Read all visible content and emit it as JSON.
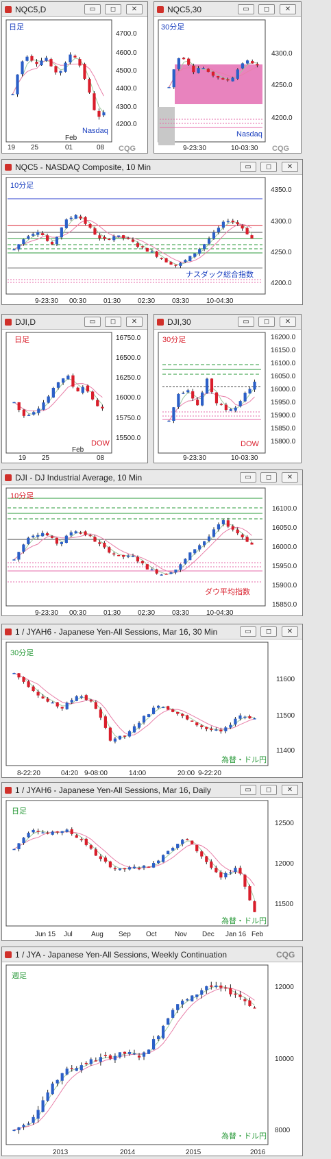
{
  "colors": {
    "up": "#2b5fc7",
    "down": "#d91e2b",
    "bg": "#ffffff",
    "titlebar": "#e9e9e9"
  },
  "window_buttons": {
    "minimize": "▭",
    "restore": "◻",
    "close": "✕"
  },
  "logo": "CQG",
  "windows": [
    {
      "title": "NQC5,D",
      "label": "日足",
      "note": "Nasdaq",
      "yticks": [
        "4700.0",
        "4600.0",
        "4500.0",
        "4400.0",
        "4300.0",
        "4200.0"
      ],
      "xticks": [
        "19",
        "25",
        "01",
        "08"
      ],
      "xextra": "Feb"
    },
    {
      "title": "NQC5,30",
      "label": "30分足",
      "note": "Nasdaq",
      "yticks": [
        "4300.0",
        "4250.0",
        "4200.0"
      ],
      "xticks": [
        "9-23:30",
        "10-03:30"
      ]
    },
    {
      "title": "NQC5 - NASDAQ Composite, 10 Min",
      "label": "10分足",
      "note": "ナスダック総合指数",
      "yticks": [
        "4350.0",
        "4300.0",
        "4250.0",
        "4200.0"
      ],
      "xticks": [
        "9-23:30",
        "00:30",
        "01:30",
        "02:30",
        "03:30",
        "10-04:30"
      ]
    },
    {
      "title": "DJI,D",
      "label": "日足",
      "note": "DOW",
      "yticks": [
        "16750.0",
        "16500.0",
        "16250.0",
        "16000.0",
        "15750.0",
        "15500.0"
      ],
      "xticks": [
        "19",
        "25",
        "08"
      ],
      "xextra": "Feb"
    },
    {
      "title": "DJI,30",
      "label": "30分足",
      "note": "DOW",
      "yticks": [
        "16200.0",
        "16150.0",
        "16100.0",
        "16050.0",
        "16000.0",
        "15950.0",
        "15900.0",
        "15850.0",
        "15800.0"
      ],
      "xticks": [
        "9-23:30",
        "10-03:30"
      ]
    },
    {
      "title": "DJI - DJ Industrial Average, 10 Min",
      "label": "10分足",
      "note": "ダウ平均指数",
      "yticks": [
        "16100.0",
        "16050.0",
        "16000.0",
        "15950.0",
        "15900.0",
        "15850.0"
      ],
      "xticks": [
        "9-23:30",
        "00:30",
        "01:30",
        "02:30",
        "03:30",
        "10-04:30"
      ]
    },
    {
      "title": "1 / JYAH6 - Japanese Yen-All Sessions, Mar 16, 30 Min",
      "label": "30分足",
      "note": "為替・ドル円",
      "yticks": [
        "11600",
        "11500",
        "11400"
      ],
      "xticks": [
        "8-22:20",
        "04:20",
        "9-08:00",
        "14:00",
        "20:00",
        "9-22:20"
      ]
    },
    {
      "title": "1 / JYAH6 - Japanese Yen-All Sessions, Mar 16, Daily",
      "label": "日足",
      "note": "為替・ドル円",
      "yticks": [
        "12500",
        "12000",
        "11500"
      ],
      "xticks": [
        "Jun 15",
        "Jul",
        "Aug",
        "Sep",
        "Oct",
        "Nov",
        "Dec",
        "Jan 16",
        "Feb"
      ]
    },
    {
      "title": "1 / JYA - Japanese Yen-All Sessions, Weekly Continuation",
      "label": "週足",
      "note": "為替・ドル円",
      "yticks": [
        "12000",
        "10000",
        "8000"
      ],
      "xticks": [
        "2013",
        "2014",
        "2015",
        "2016"
      ]
    }
  ],
  "chart_data": [
    {
      "type": "candlestick",
      "symbol": "NQC5",
      "interval": "Daily",
      "ylim": [
        4150,
        4750
      ],
      "trend": [
        4380,
        4520,
        4590,
        4560,
        4540,
        4580,
        4510,
        4490,
        4530,
        4600,
        4560,
        4470,
        4360,
        4250,
        4280
      ]
    },
    {
      "type": "candlestick",
      "symbol": "NQC5",
      "interval": "30 Min",
      "ylim": [
        4175,
        4330
      ],
      "trend": [
        4225,
        4280,
        4280,
        4255,
        4265,
        4250,
        4245,
        4235,
        4245,
        4270,
        4275,
        4265
      ]
    },
    {
      "type": "candlestick",
      "symbol": "NQC5",
      "interval": "10 Min",
      "ylim": [
        4190,
        4365
      ],
      "trend": [
        4255,
        4280,
        4290,
        4260,
        4305,
        4320,
        4295,
        4270,
        4280,
        4275,
        4260,
        4250,
        4235,
        4225,
        4240,
        4260,
        4285,
        4310,
        4300,
        4275
      ]
    },
    {
      "type": "candlestick",
      "symbol": "DJI",
      "interval": "Daily",
      "ylim": [
        15450,
        16900
      ],
      "trend": [
        16050,
        15850,
        15900,
        16000,
        16150,
        16350,
        16450,
        16200,
        16300,
        16050,
        15950
      ]
    },
    {
      "type": "candlestick",
      "symbol": "DJI",
      "interval": "30 Min",
      "ylim": [
        15780,
        16220
      ],
      "trend": [
        15880,
        16000,
        16020,
        15950,
        16060,
        15960,
        15930,
        15940,
        16000,
        16050
      ]
    },
    {
      "type": "candlestick",
      "symbol": "DJI",
      "interval": "10 Min",
      "ylim": [
        15830,
        16150
      ],
      "trend": [
        15950,
        16030,
        16040,
        16000,
        16050,
        16030,
        15990,
        15960,
        15960,
        15920,
        15900,
        15920,
        15980,
        16020,
        16080,
        16040,
        16000
      ]
    },
    {
      "type": "candlestick",
      "symbol": "JYAH6",
      "interval": "30 Min",
      "ylim": [
        11380,
        11660
      ],
      "trend": [
        11620,
        11580,
        11540,
        11520,
        11560,
        11530,
        11430,
        11440,
        11490,
        11530,
        11510,
        11480,
        11460,
        11450,
        11500,
        11490
      ]
    },
    {
      "type": "candlestick",
      "symbol": "JYAH6",
      "interval": "Daily",
      "ylim": [
        11400,
        12600
      ],
      "trend": [
        12200,
        12450,
        12380,
        12430,
        12300,
        12080,
        11950,
        11980,
        12000,
        12200,
        12330,
        12100,
        11850,
        12000,
        11450
      ]
    },
    {
      "type": "candlestick",
      "symbol": "JYA",
      "interval": "Weekly",
      "ylim": [
        7600,
        12600
      ],
      "trend": [
        7900,
        8200,
        9000,
        9700,
        9900,
        10100,
        10200,
        10300,
        10200,
        10900,
        11800,
        12000,
        12400,
        12300,
        12100,
        11700
      ]
    }
  ]
}
